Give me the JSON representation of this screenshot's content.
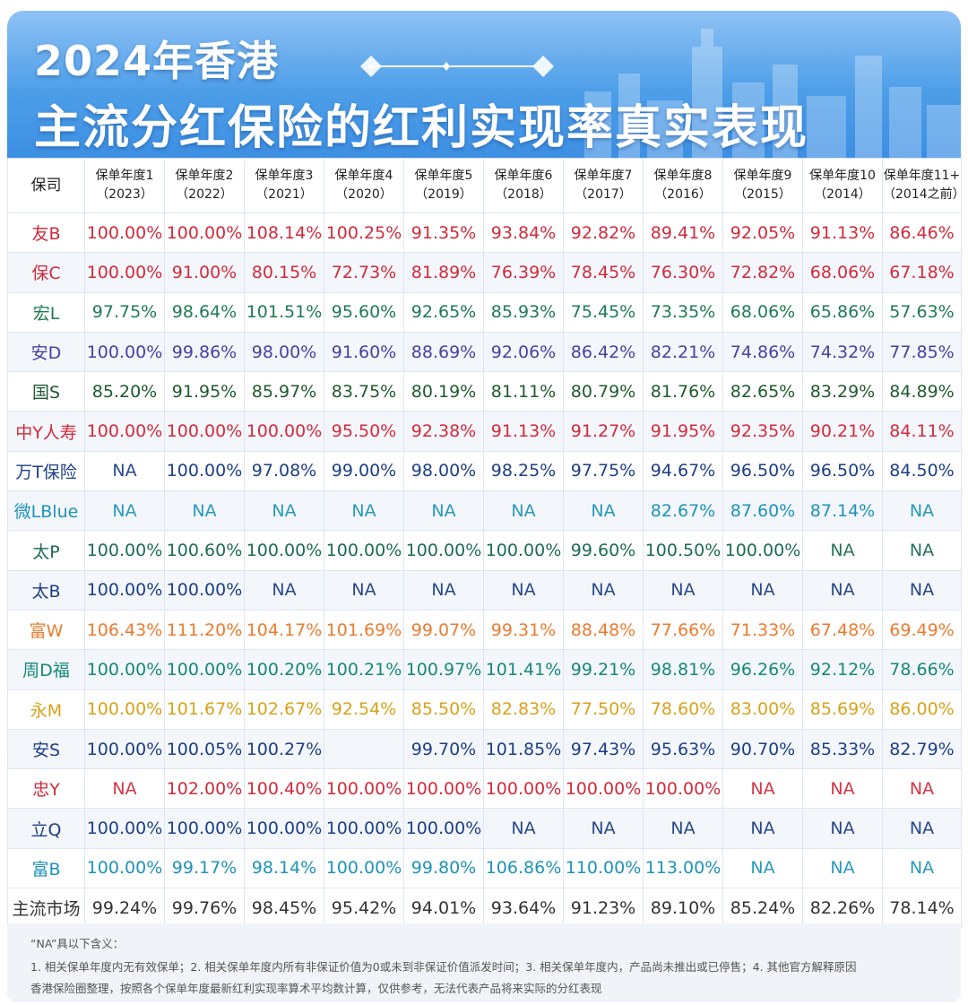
{
  "title": {
    "line1": "2024年香港",
    "line2": "主流分红保险的红利实现率真实表现"
  },
  "table": {
    "company_header": "保司",
    "columns": [
      {
        "label": "保单年度1",
        "year": "（2023）"
      },
      {
        "label": "保单年度2",
        "year": "（2022）"
      },
      {
        "label": "保单年度3",
        "year": "（2021）"
      },
      {
        "label": "保单年度4",
        "year": "（2020）"
      },
      {
        "label": "保单年度5",
        "year": "（2019）"
      },
      {
        "label": "保单年度6",
        "year": "（2018）"
      },
      {
        "label": "保单年度7",
        "year": "（2017）"
      },
      {
        "label": "保单年度8",
        "year": "（2016）"
      },
      {
        "label": "保单年度9",
        "year": "（2015）"
      },
      {
        "label": "保单年度10",
        "year": "（2014）"
      },
      {
        "label": "保单年度11+",
        "year": "（2014之前）"
      }
    ],
    "rows": [
      {
        "name": "友B",
        "color": "#d32a3c",
        "values": [
          "100.00%",
          "100.00%",
          "108.14%",
          "100.25%",
          "91.35%",
          "93.84%",
          "92.82%",
          "89.41%",
          "92.05%",
          "91.13%",
          "86.46%"
        ]
      },
      {
        "name": "保C",
        "color": "#d32a3c",
        "values": [
          "100.00%",
          "91.00%",
          "80.15%",
          "72.73%",
          "81.89%",
          "76.39%",
          "78.45%",
          "76.30%",
          "72.82%",
          "68.06%",
          "67.18%"
        ]
      },
      {
        "name": "宏L",
        "color": "#1e7b52",
        "values": [
          "97.75%",
          "98.64%",
          "101.51%",
          "95.60%",
          "92.65%",
          "85.93%",
          "75.45%",
          "73.35%",
          "68.06%",
          "65.86%",
          "57.63%"
        ]
      },
      {
        "name": "安D",
        "color": "#4a3fa0",
        "values": [
          "100.00%",
          "99.86%",
          "98.00%",
          "91.60%",
          "88.69%",
          "92.06%",
          "86.42%",
          "82.21%",
          "74.86%",
          "74.32%",
          "77.85%"
        ]
      },
      {
        "name": "国S",
        "color": "#1f5a2e",
        "values": [
          "85.20%",
          "91.95%",
          "85.97%",
          "83.75%",
          "80.19%",
          "81.11%",
          "80.79%",
          "81.76%",
          "82.65%",
          "83.29%",
          "84.89%"
        ]
      },
      {
        "name": "中Y人寿",
        "color": "#d32a3c",
        "values": [
          "100.00%",
          "100.00%",
          "100.00%",
          "95.50%",
          "92.38%",
          "91.13%",
          "91.27%",
          "91.95%",
          "92.35%",
          "90.21%",
          "84.11%"
        ]
      },
      {
        "name": "万T保险",
        "color": "#1d3f85",
        "values": [
          "NA",
          "100.00%",
          "97.08%",
          "99.00%",
          "98.00%",
          "98.25%",
          "97.75%",
          "94.67%",
          "96.50%",
          "96.50%",
          "84.50%"
        ]
      },
      {
        "name": "微LBlue",
        "color": "#1d94b8",
        "values": [
          "NA",
          "NA",
          "NA",
          "NA",
          "NA",
          "NA",
          "NA",
          "82.67%",
          "87.60%",
          "87.14%",
          "NA"
        ]
      },
      {
        "name": "太P",
        "color": "#1e6b53",
        "values": [
          "100.00%",
          "100.60%",
          "100.00%",
          "100.00%",
          "100.00%",
          "100.00%",
          "99.60%",
          "100.50%",
          "100.00%",
          "NA",
          "NA"
        ]
      },
      {
        "name": "太B",
        "color": "#1d3f85",
        "values": [
          "100.00%",
          "100.00%",
          "NA",
          "NA",
          "NA",
          "NA",
          "NA",
          "NA",
          "NA",
          "NA",
          "NA"
        ]
      },
      {
        "name": "富W",
        "color": "#ec7b2e",
        "values": [
          "106.43%",
          "111.20%",
          "104.17%",
          "101.69%",
          "99.07%",
          "99.31%",
          "88.48%",
          "77.66%",
          "71.33%",
          "67.48%",
          "69.49%"
        ]
      },
      {
        "name": "周D福",
        "color": "#16887a",
        "values": [
          "100.00%",
          "100.00%",
          "100.20%",
          "100.21%",
          "100.97%",
          "101.41%",
          "99.21%",
          "98.81%",
          "96.26%",
          "92.12%",
          "78.66%"
        ]
      },
      {
        "name": "永M",
        "color": "#d9a21a",
        "values": [
          "100.00%",
          "101.67%",
          "102.67%",
          "92.54%",
          "85.50%",
          "82.83%",
          "77.50%",
          "78.60%",
          "83.00%",
          "85.69%",
          "86.00%"
        ]
      },
      {
        "name": "安S",
        "color": "#1d3f85",
        "values": [
          "100.00%",
          "100.05%",
          "100.27%",
          "",
          "99.70%",
          "101.85%",
          "97.43%",
          "95.63%",
          "90.70%",
          "85.33%",
          "82.79%"
        ]
      },
      {
        "name": "忠Y",
        "color": "#d32a3c",
        "values": [
          "NA",
          "102.00%",
          "100.40%",
          "100.00%",
          "100.00%",
          "100.00%",
          "100.00%",
          "100.00%",
          "NA",
          "NA",
          "NA"
        ]
      },
      {
        "name": "立Q",
        "color": "#1d3f85",
        "values": [
          "100.00%",
          "100.00%",
          "100.00%",
          "100.00%",
          "100.00%",
          "NA",
          "NA",
          "NA",
          "NA",
          "NA",
          "NA"
        ]
      },
      {
        "name": "富B",
        "color": "#1d94b8",
        "values": [
          "100.00%",
          "99.17%",
          "98.14%",
          "100.00%",
          "99.80%",
          "106.86%",
          "110.00%",
          "113.00%",
          "NA",
          "NA",
          "NA"
        ]
      }
    ],
    "market": {
      "name": "主流市场",
      "values": [
        "99.24%",
        "99.76%",
        "98.45%",
        "95.42%",
        "94.01%",
        "93.64%",
        "91.23%",
        "89.10%",
        "85.24%",
        "82.26%",
        "78.14%"
      ]
    }
  },
  "notes": {
    "na_title": "“NA”具以下含义：",
    "na_items": "1. 相关保单年度内无有效保单；2. 相关保单年度内所有非保证价值为0或未到非保证价值派发时间；3. 相关保单年度内，产品尚未推出或已停售；4. 其他官方解释原因",
    "source": "香港保险圈整理，按照各个保单年度最新红利实现率算术平均数计算，仅供参考，无法代表产品将来实际的分红表现"
  }
}
